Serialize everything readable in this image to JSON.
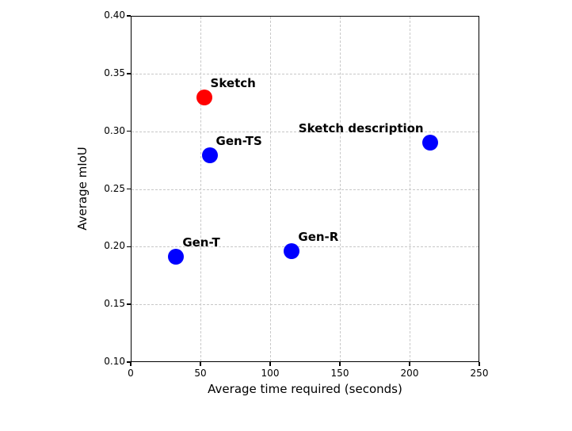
{
  "chart_data": {
    "type": "scatter",
    "title": "",
    "xlabel": "Average time required (seconds)",
    "ylabel": "Average mIoU",
    "xlim": [
      0,
      250
    ],
    "ylim": [
      0.1,
      0.4
    ],
    "xticks": [
      "0",
      "50",
      "100",
      "150",
      "200",
      "250"
    ],
    "yticks": [
      "0.10",
      "0.15",
      "0.20",
      "0.25",
      "0.30",
      "0.35",
      "0.40"
    ],
    "grid": true,
    "grid_style": "dashed",
    "legend": "none",
    "marker_size_px": 20,
    "colors": {
      "highlight_marker": "#ff0000",
      "default_marker": "#0000ff",
      "grid": "#c7c7c7",
      "axis": "#000000",
      "text": "#000000",
      "background": "#ffffff"
    },
    "points": [
      {
        "label": "Sketch",
        "x": 52,
        "y": 0.33,
        "color": "#ff0000",
        "label_side": "right"
      },
      {
        "label": "Gen-TS",
        "x": 56,
        "y": 0.28,
        "color": "#0000ff",
        "label_side": "right"
      },
      {
        "label": "Sketch description",
        "x": 214,
        "y": 0.291,
        "color": "#0000ff",
        "label_side": "left"
      },
      {
        "label": "Gen-T",
        "x": 32,
        "y": 0.192,
        "color": "#0000ff",
        "label_side": "right"
      },
      {
        "label": "Gen-R",
        "x": 115,
        "y": 0.197,
        "color": "#0000ff",
        "label_side": "right"
      }
    ]
  }
}
